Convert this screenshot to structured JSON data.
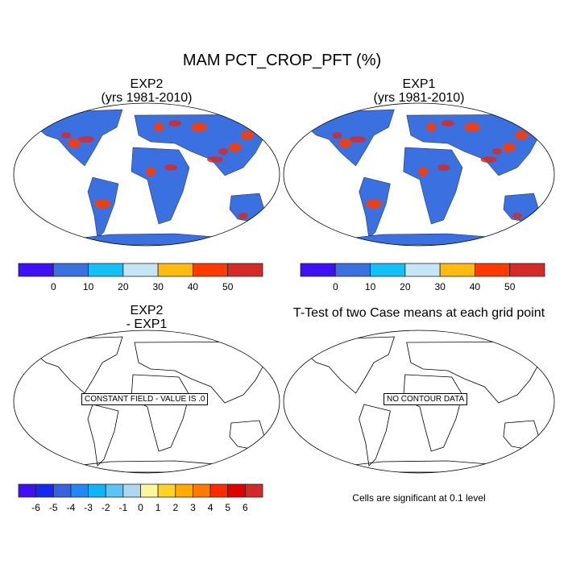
{
  "chart_data": [
    {
      "type": "heatmap",
      "title": "MAM PCT_CROP_PFT (%)",
      "panel_title": "EXP2",
      "subtitle": "(yrs 1981-2010)",
      "colorbar": {
        "ticks": [
          "0",
          "10",
          "20",
          "30",
          "40",
          "50"
        ],
        "colors": [
          "#3f10f5",
          "#3a70e0",
          "#14c0f8",
          "#c4e6f6",
          "#ffbb10",
          "#ff3a00",
          "#d42a2a"
        ]
      }
    },
    {
      "type": "heatmap",
      "panel_title": "EXP1",
      "subtitle": "(yrs 1981-2010)",
      "colorbar": {
        "ticks": [
          "0",
          "10",
          "20",
          "30",
          "40",
          "50"
        ],
        "colors": [
          "#3f10f5",
          "#3a70e0",
          "#14c0f8",
          "#c4e6f6",
          "#ffbb10",
          "#ff3a00",
          "#d42a2a"
        ]
      }
    },
    {
      "type": "heatmap",
      "panel_title": "EXP2",
      "subtitle": "- EXP1",
      "annotation": "CONSTANT FIELD - VALUE IS .0",
      "colorbar": {
        "ticks": [
          "-6",
          "-5",
          "-4",
          "-3",
          "-2",
          "-1",
          "0",
          "1",
          "2",
          "3",
          "4",
          "5",
          "6"
        ],
        "colors": [
          "#3f10f5",
          "#1529f0",
          "#3a62dc",
          "#2288f5",
          "#10b4f8",
          "#5cc4f2",
          "#add8f0",
          "#fff59a",
          "#ffd427",
          "#ffab00",
          "#ff7a00",
          "#ff2a00",
          "#e00000",
          "#d22a2a"
        ]
      }
    },
    {
      "type": "heatmap",
      "panel_title": "T-Test of two Case means at each grid point",
      "annotation": "NO CONTOUR DATA",
      "footer": "Cells are significant at 0.1 level"
    }
  ]
}
